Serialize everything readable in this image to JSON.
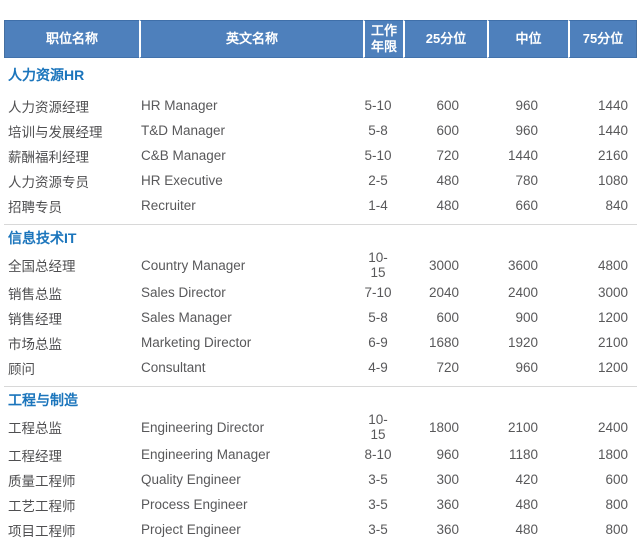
{
  "colors": {
    "header_bg": "#4E80BC",
    "header_text": "#FFFFFF",
    "header_divider": "#FFFFFF",
    "section_title_text": "#1B75BC",
    "body_text": "#58585A",
    "rule_line": "#D8D8D8",
    "page_bg": "#FFFFFF"
  },
  "table": {
    "columns": [
      {
        "key": "position",
        "label": "职位名称"
      },
      {
        "key": "english",
        "label": "英文名称"
      },
      {
        "key": "years",
        "label": "工作年限"
      },
      {
        "key": "p25",
        "label": "25分位"
      },
      {
        "key": "median",
        "label": "中位"
      },
      {
        "key": "p75",
        "label": "75分位"
      }
    ],
    "sections": [
      {
        "title": "人力资源HR",
        "rows": [
          [
            "人力资源经理",
            "HR Manager",
            "5-10",
            "600",
            "960",
            "1440"
          ],
          [
            "培训与发展经理",
            "T&D Manager",
            "5-8",
            "600",
            "960",
            "1440"
          ],
          [
            "薪酬福利经理",
            "C&B Manager",
            "5-10",
            "720",
            "1440",
            "2160"
          ],
          [
            "人力资源专员",
            "HR Executive",
            "2-5",
            "480",
            "780",
            "1080"
          ],
          [
            "招聘专员",
            "Recruiter",
            "1-4",
            "480",
            "660",
            "840"
          ]
        ]
      },
      {
        "title": "信息技术IT",
        "rows": [
          [
            "全国总经理",
            "Country Manager",
            "10-15",
            "3000",
            "3600",
            "4800"
          ],
          [
            "销售总监",
            "Sales Director",
            "7-10",
            "2040",
            "2400",
            "3000"
          ],
          [
            "销售经理",
            "Sales Manager",
            "5-8",
            "600",
            "900",
            "1200"
          ],
          [
            "市场总监",
            "Marketing Director",
            "6-9",
            "1680",
            "1920",
            "2100"
          ],
          [
            "顾问",
            "Consultant",
            "4-9",
            "720",
            "960",
            "1200"
          ]
        ]
      },
      {
        "title": "工程与制造",
        "rows": [
          [
            "工程总监",
            "Engineering Director",
            "10-15",
            "1800",
            "2100",
            "2400"
          ],
          [
            "工程经理",
            "Engineering Manager",
            "8-10",
            "960",
            "1180",
            "1800"
          ],
          [
            "质量工程师",
            "Quality Engineer",
            "3-5",
            "300",
            "420",
            "600"
          ],
          [
            "工艺工程师",
            "Process Engineer",
            "3-5",
            "360",
            "480",
            "800"
          ],
          [
            "项目工程师",
            "Project Engineer",
            "3-5",
            "360",
            "480",
            "800"
          ]
        ]
      }
    ]
  }
}
